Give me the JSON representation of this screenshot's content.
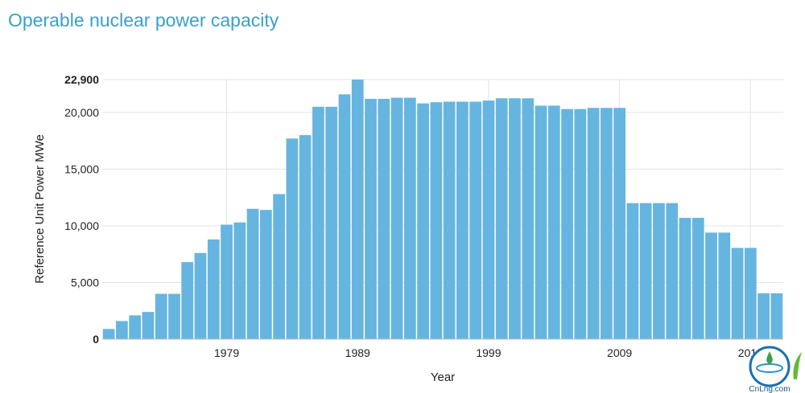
{
  "chart_data": {
    "type": "bar",
    "title": "Operable nuclear power capacity",
    "xlabel": "Year",
    "ylabel": "Reference Unit Power MWe",
    "ylim": [
      0,
      22900
    ],
    "yticks": [
      0,
      5000,
      10000,
      15000,
      20000,
      22900
    ],
    "ytick_labels": [
      "0",
      "5,000",
      "10,000",
      "15,000",
      "20,000",
      "22,900"
    ],
    "xticks": [
      1979,
      1989,
      1999,
      2009,
      2019
    ],
    "x": [
      1970,
      1971,
      1972,
      1973,
      1974,
      1975,
      1976,
      1977,
      1978,
      1979,
      1980,
      1981,
      1982,
      1983,
      1984,
      1985,
      1986,
      1987,
      1988,
      1989,
      1990,
      1991,
      1992,
      1993,
      1994,
      1995,
      1996,
      1997,
      1998,
      1999,
      2000,
      2001,
      2002,
      2003,
      2004,
      2005,
      2006,
      2007,
      2008,
      2009,
      2010,
      2011,
      2012,
      2013,
      2014,
      2015,
      2016,
      2017,
      2018,
      2019,
      2020,
      2021
    ],
    "values": [
      900,
      1600,
      2100,
      2400,
      4000,
      4000,
      6800,
      7600,
      8800,
      10100,
      10300,
      11500,
      11400,
      12800,
      17700,
      18000,
      20500,
      20500,
      21600,
      22900,
      21200,
      21200,
      21300,
      21300,
      20800,
      20900,
      20950,
      20950,
      20950,
      21050,
      21250,
      21250,
      21250,
      20600,
      20600,
      20300,
      20300,
      20400,
      20400,
      20400,
      12000,
      12000,
      12000,
      12000,
      10700,
      10700,
      9400,
      9400,
      8050,
      8050,
      4050,
      4050
    ],
    "bar_color": "#66b5e0",
    "grid": true
  },
  "watermark": {
    "text": "CnLng.com"
  }
}
